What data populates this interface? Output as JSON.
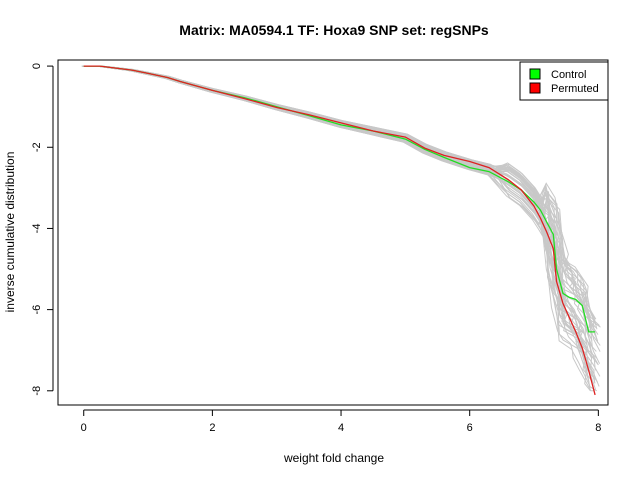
{
  "chart_data": {
    "type": "line",
    "title": "Matrix: MA0594.1 TF: Hoxa9 SNP set: regSNPs",
    "xlabel": "weight fold change",
    "ylabel": "inverse cumulative distribution",
    "xlim": [
      -0.4,
      8.15
    ],
    "ylim": [
      -8.35,
      0.15
    ],
    "x_ticks": [
      0,
      2,
      4,
      6,
      8
    ],
    "y_ticks": [
      0,
      -2,
      -4,
      -6,
      -8
    ],
    "grid": false,
    "legend_position": "top-right",
    "legend": [
      {
        "label": "Control",
        "color": "#00ff00"
      },
      {
        "label": "Permuted",
        "color": "#ff0000"
      }
    ],
    "colors": {
      "control": "#22dd22",
      "permuted": "#dd2222",
      "background_runs": "#c8c8c8"
    },
    "series": [
      {
        "name": "Control",
        "color": "#22dd22",
        "x": [
          0,
          0.25,
          0.5,
          0.75,
          1.0,
          1.3,
          1.5,
          2.0,
          2.5,
          3.0,
          3.5,
          4.0,
          4.5,
          5.0,
          5.3,
          5.6,
          6.0,
          6.3,
          6.6,
          6.8,
          7.0,
          7.1,
          7.2,
          7.3,
          7.35,
          7.45,
          7.55,
          7.65,
          7.75,
          7.85,
          7.95
        ],
        "y": [
          0,
          0,
          -0.05,
          -0.1,
          -0.18,
          -0.28,
          -0.38,
          -0.6,
          -0.78,
          -1.0,
          -1.22,
          -1.45,
          -1.6,
          -1.8,
          -2.05,
          -2.25,
          -2.5,
          -2.6,
          -2.85,
          -3.05,
          -3.35,
          -3.55,
          -3.85,
          -4.15,
          -5.0,
          -5.6,
          -5.7,
          -5.75,
          -5.9,
          -6.55,
          -6.55
        ]
      },
      {
        "name": "Permuted",
        "color": "#dd2222",
        "x": [
          0,
          0.25,
          0.5,
          0.75,
          1.0,
          1.3,
          1.5,
          2.0,
          2.5,
          3.0,
          3.5,
          4.0,
          4.5,
          5.0,
          5.3,
          5.6,
          6.0,
          6.3,
          6.6,
          6.8,
          7.0,
          7.1,
          7.2,
          7.3,
          7.35,
          7.45,
          7.55,
          7.65,
          7.75,
          7.85,
          7.95
        ],
        "y": [
          0,
          0,
          -0.05,
          -0.1,
          -0.18,
          -0.28,
          -0.38,
          -0.6,
          -0.8,
          -1.02,
          -1.2,
          -1.4,
          -1.6,
          -1.75,
          -2.02,
          -2.2,
          -2.35,
          -2.5,
          -2.8,
          -3.05,
          -3.45,
          -3.75,
          -4.1,
          -4.5,
          -5.3,
          -5.85,
          -6.2,
          -6.55,
          -6.95,
          -7.5,
          -8.1
        ]
      }
    ]
  }
}
